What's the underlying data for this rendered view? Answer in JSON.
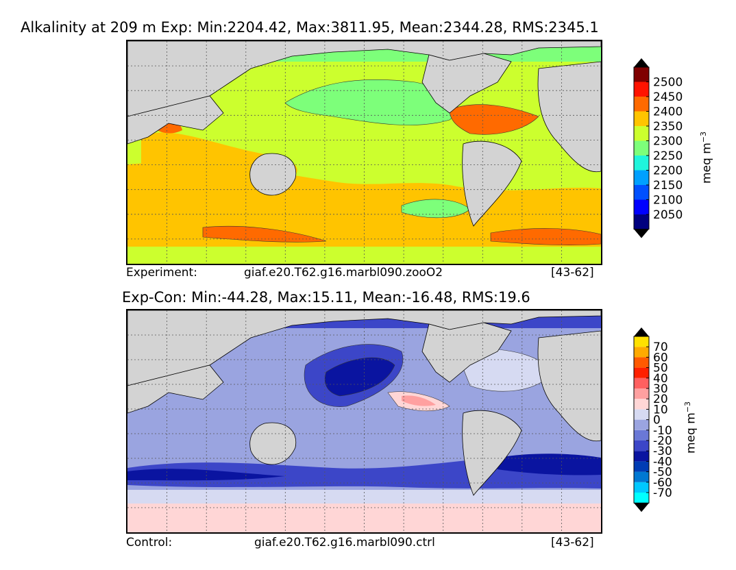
{
  "chart_data": [
    {
      "type": "heatmap",
      "title": "Alkalinity at 209 m Exp: Min:2204.42, Max:3811.95, Mean:2344.28, RMS:2345.1",
      "caption_left": "Experiment:",
      "caption_center": "giaf.e20.T62.g16.marbl090.zooO2",
      "caption_right": "[43-62]",
      "colorbar": {
        "label": "meq m",
        "label_exp": "−3",
        "ticks": [
          "2050",
          "2100",
          "2150",
          "2200",
          "2250",
          "2300",
          "2350",
          "2400",
          "2450",
          "2500"
        ],
        "colors": [
          "#00007f",
          "#0000ff",
          "#0050ff",
          "#00a0ff",
          "#1ff5dc",
          "#7dff7a",
          "#ccff2e",
          "#ffc400",
          "#ff6a00",
          "#ff1300",
          "#7f0000"
        ]
      }
    },
    {
      "type": "heatmap",
      "title": "Exp-Con: Min:-44.28, Max:15.11, Mean:-16.48, RMS:19.6",
      "caption_left": "Control:",
      "caption_center": "giaf.e20.T62.g16.marbl090.ctrl",
      "caption_right": "[43-62]",
      "colorbar": {
        "label": "meq m",
        "label_exp": "−3",
        "ticks": [
          "-70",
          "-60",
          "-50",
          "-40",
          "-30",
          "-20",
          "-10",
          "0",
          "10",
          "20",
          "30",
          "40",
          "50",
          "60",
          "70"
        ],
        "colors": [
          "#00ffff",
          "#00c8ff",
          "#0078d2",
          "#003cb4",
          "#0a14a0",
          "#3c46c8",
          "#6a78d6",
          "#9aa4e0",
          "#d6daf2",
          "#ffd6d6",
          "#ffa0a0",
          "#ff6060",
          "#ff2000",
          "#ff5a00",
          "#ffaa00",
          "#ffe100"
        ]
      }
    }
  ]
}
